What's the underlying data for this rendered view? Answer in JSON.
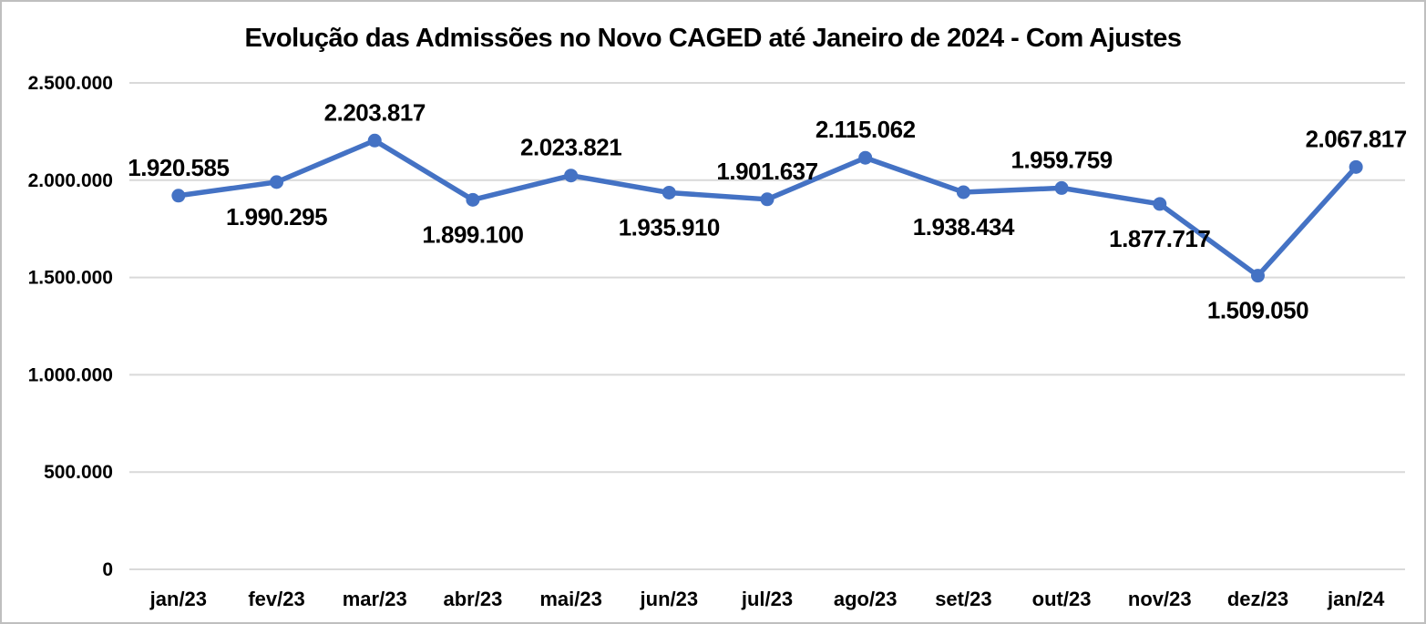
{
  "chart_data": {
    "type": "line",
    "title": "Evolução das Admissões no Novo CAGED até Janeiro de 2024 - Com Ajustes",
    "categories": [
      "jan/23",
      "fev/23",
      "mar/23",
      "abr/23",
      "mai/23",
      "jun/23",
      "jul/23",
      "ago/23",
      "set/23",
      "out/23",
      "nov/23",
      "dez/23",
      "jan/24"
    ],
    "values": [
      1920585,
      1990295,
      2203817,
      1899100,
      2023821,
      1935910,
      1901637,
      2115062,
      1938434,
      1959759,
      1877717,
      1509050,
      2067817
    ],
    "data_labels": [
      "1.920.585",
      "1.990.295",
      "2.203.817",
      "1.899.100",
      "2.023.821",
      "1.935.910",
      "1.901.637",
      "2.115.062",
      "1.938.434",
      "1.959.759",
      "1.877.717",
      "1.509.050",
      "2.067.817"
    ],
    "xlabel": "",
    "ylabel": "",
    "ylim": [
      0,
      2500000
    ],
    "y_tick_interval": 500000,
    "y_ticks": [
      {
        "value": 0,
        "label": "0"
      },
      {
        "value": 500000,
        "label": "500.000"
      },
      {
        "value": 1000000,
        "label": "1.000.000"
      },
      {
        "value": 1500000,
        "label": "1.500.000"
      },
      {
        "value": 2000000,
        "label": "2.000.000"
      },
      {
        "value": 2500000,
        "label": "2.500.000"
      }
    ],
    "grid": "horizontal",
    "legend": "none",
    "marker": "circle",
    "label_positions": [
      "above",
      "below",
      "above",
      "below",
      "above",
      "below",
      "above",
      "above",
      "below",
      "above",
      "below",
      "below",
      "above"
    ],
    "line_color": "#4472C4",
    "grid_color": "#d9d9d9",
    "text_color": "#000000",
    "background_color": "#ffffff",
    "border_color": "#bfbfbf"
  }
}
